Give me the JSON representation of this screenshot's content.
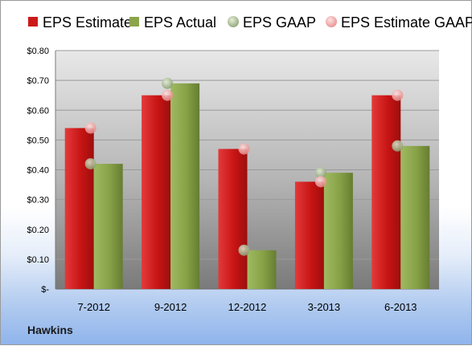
{
  "chart_data": {
    "type": "bar",
    "categories": [
      "7-2012",
      "9-2012",
      "12-2012",
      "3-2013",
      "6-2013"
    ],
    "series": [
      {
        "name": "EPS Estimate",
        "kind": "bar",
        "color": "#cc1a1a",
        "values": [
          0.54,
          0.65,
          0.47,
          0.36,
          0.65
        ]
      },
      {
        "name": "EPS Actual",
        "kind": "bar",
        "color": "#8aa54a",
        "values": [
          0.42,
          0.69,
          0.13,
          0.39,
          0.48
        ]
      },
      {
        "name": "EPS GAAP",
        "kind": "marker",
        "color": "#9fb58a",
        "values": [
          0.42,
          0.69,
          0.13,
          0.39,
          0.48
        ]
      },
      {
        "name": "EPS Estimate GAAP",
        "kind": "marker",
        "color": "#f0a0a0",
        "values": [
          0.54,
          0.65,
          0.47,
          0.36,
          0.65
        ]
      }
    ],
    "ylim": [
      0,
      0.8
    ],
    "yticks": [
      0,
      0.1,
      0.2,
      0.3,
      0.4,
      0.5,
      0.6,
      0.7,
      0.8
    ],
    "ytick_labels": [
      "$-",
      "$0.10",
      "$0.20",
      "$0.30",
      "$0.40",
      "$0.50",
      "$0.60",
      "$0.70",
      "$0.80"
    ],
    "grid": true,
    "legend_position": "top",
    "company_label": "Hawkins"
  }
}
